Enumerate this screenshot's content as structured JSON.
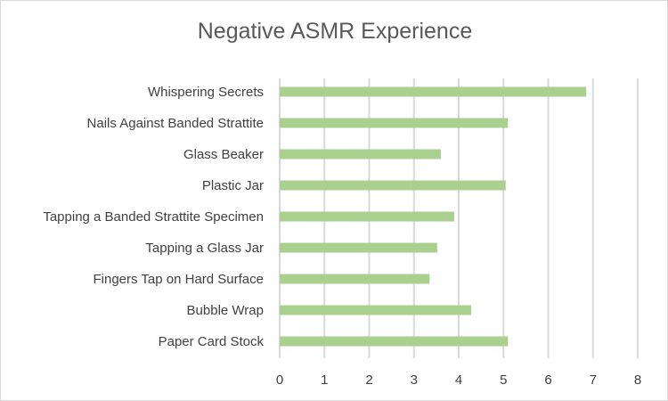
{
  "chart_data": {
    "type": "bar",
    "orientation": "horizontal",
    "title": "Negative ASMR Experience",
    "xlabel": "",
    "ylabel": "",
    "categories": [
      "Whispering Secrets",
      "Nails Against Banded Strattite",
      "Glass Beaker",
      "Plastic Jar",
      "Tapping a Banded Strattite Specimen",
      "Tapping a Glass Jar",
      "Fingers Tap on Hard Surface",
      "Bubble Wrap",
      "Paper Card Stock"
    ],
    "values": [
      6.85,
      5.1,
      3.6,
      5.05,
      3.9,
      3.52,
      3.35,
      4.28,
      5.1
    ],
    "xlim": [
      0,
      8
    ],
    "ticks": [
      "0",
      "1",
      "2",
      "3",
      "4",
      "5",
      "6",
      "7",
      "8"
    ],
    "grid": "vertical",
    "legend": "none",
    "bar_color": "#a9d08e",
    "grid_color": "#d9d9d9"
  }
}
